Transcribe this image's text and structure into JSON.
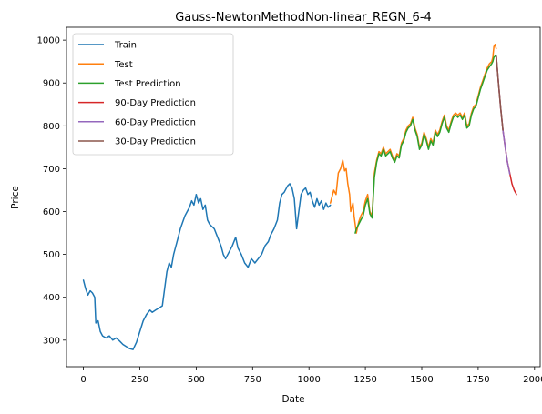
{
  "chart_data": {
    "type": "line",
    "title": "Gauss-NewtonMethodNon-linear_REGN_6-4",
    "xlabel": "Date",
    "ylabel": "Price",
    "xlim": [
      -75,
      2025
    ],
    "ylim": [
      238,
      1030
    ],
    "xticks": [
      0,
      250,
      500,
      750,
      1000,
      1250,
      1500,
      1750,
      2000
    ],
    "yticks": [
      300,
      400,
      500,
      600,
      700,
      800,
      900,
      1000
    ],
    "grid": false,
    "legend_position": "top-left",
    "series": [
      {
        "name": "Train",
        "color": "#1f77b4",
        "points": [
          [
            0,
            440
          ],
          [
            10,
            420
          ],
          [
            20,
            405
          ],
          [
            30,
            415
          ],
          [
            40,
            410
          ],
          [
            50,
            400
          ],
          [
            55,
            340
          ],
          [
            65,
            345
          ],
          [
            75,
            320
          ],
          [
            85,
            310
          ],
          [
            100,
            305
          ],
          [
            115,
            310
          ],
          [
            130,
            300
          ],
          [
            145,
            305
          ],
          [
            160,
            298
          ],
          [
            175,
            290
          ],
          [
            190,
            285
          ],
          [
            205,
            280
          ],
          [
            220,
            278
          ],
          [
            235,
            295
          ],
          [
            250,
            320
          ],
          [
            265,
            345
          ],
          [
            280,
            360
          ],
          [
            295,
            370
          ],
          [
            305,
            365
          ],
          [
            320,
            370
          ],
          [
            335,
            375
          ],
          [
            350,
            380
          ],
          [
            360,
            420
          ],
          [
            370,
            460
          ],
          [
            380,
            480
          ],
          [
            390,
            470
          ],
          [
            400,
            500
          ],
          [
            410,
            520
          ],
          [
            420,
            540
          ],
          [
            430,
            560
          ],
          [
            440,
            575
          ],
          [
            450,
            590
          ],
          [
            460,
            600
          ],
          [
            470,
            610
          ],
          [
            480,
            625
          ],
          [
            490,
            615
          ],
          [
            500,
            640
          ],
          [
            510,
            620
          ],
          [
            520,
            630
          ],
          [
            530,
            605
          ],
          [
            540,
            615
          ],
          [
            550,
            580
          ],
          [
            560,
            570
          ],
          [
            570,
            565
          ],
          [
            580,
            560
          ],
          [
            595,
            540
          ],
          [
            610,
            520
          ],
          [
            620,
            500
          ],
          [
            630,
            490
          ],
          [
            645,
            505
          ],
          [
            660,
            520
          ],
          [
            675,
            540
          ],
          [
            685,
            515
          ],
          [
            700,
            500
          ],
          [
            715,
            480
          ],
          [
            730,
            470
          ],
          [
            745,
            490
          ],
          [
            760,
            480
          ],
          [
            775,
            490
          ],
          [
            790,
            500
          ],
          [
            805,
            520
          ],
          [
            820,
            530
          ],
          [
            830,
            545
          ],
          [
            845,
            560
          ],
          [
            860,
            580
          ],
          [
            870,
            620
          ],
          [
            880,
            640
          ],
          [
            890,
            645
          ],
          [
            905,
            660
          ],
          [
            915,
            665
          ],
          [
            925,
            655
          ],
          [
            935,
            630
          ],
          [
            945,
            560
          ],
          [
            955,
            600
          ],
          [
            965,
            640
          ],
          [
            975,
            650
          ],
          [
            985,
            655
          ],
          [
            995,
            640
          ],
          [
            1005,
            645
          ],
          [
            1015,
            625
          ],
          [
            1025,
            610
          ],
          [
            1035,
            630
          ],
          [
            1045,
            615
          ],
          [
            1055,
            625
          ],
          [
            1065,
            605
          ],
          [
            1075,
            620
          ],
          [
            1085,
            610
          ],
          [
            1095,
            615
          ]
        ]
      },
      {
        "name": "Test",
        "color": "#ff7f0e",
        "points": [
          [
            1095,
            620
          ],
          [
            1110,
            650
          ],
          [
            1120,
            640
          ],
          [
            1130,
            690
          ],
          [
            1140,
            700
          ],
          [
            1150,
            720
          ],
          [
            1158,
            695
          ],
          [
            1165,
            700
          ],
          [
            1172,
            665
          ],
          [
            1180,
            640
          ],
          [
            1185,
            600
          ],
          [
            1195,
            620
          ],
          [
            1200,
            590
          ],
          [
            1210,
            550
          ],
          [
            1220,
            575
          ],
          [
            1230,
            590
          ],
          [
            1240,
            600
          ],
          [
            1250,
            625
          ],
          [
            1260,
            640
          ],
          [
            1270,
            600
          ],
          [
            1280,
            590
          ],
          [
            1290,
            690
          ],
          [
            1300,
            720
          ],
          [
            1310,
            740
          ],
          [
            1320,
            735
          ],
          [
            1330,
            750
          ],
          [
            1340,
            735
          ],
          [
            1350,
            740
          ],
          [
            1360,
            745
          ],
          [
            1370,
            730
          ],
          [
            1380,
            720
          ],
          [
            1390,
            735
          ],
          [
            1400,
            730
          ],
          [
            1410,
            760
          ],
          [
            1420,
            770
          ],
          [
            1430,
            790
          ],
          [
            1440,
            800
          ],
          [
            1450,
            805
          ],
          [
            1460,
            820
          ],
          [
            1470,
            795
          ],
          [
            1480,
            780
          ],
          [
            1490,
            750
          ],
          [
            1500,
            760
          ],
          [
            1510,
            785
          ],
          [
            1520,
            770
          ],
          [
            1530,
            750
          ],
          [
            1540,
            770
          ],
          [
            1550,
            760
          ],
          [
            1560,
            790
          ],
          [
            1570,
            780
          ],
          [
            1580,
            790
          ],
          [
            1590,
            810
          ],
          [
            1600,
            825
          ],
          [
            1610,
            800
          ],
          [
            1620,
            790
          ],
          [
            1630,
            810
          ],
          [
            1640,
            825
          ],
          [
            1650,
            830
          ],
          [
            1660,
            825
          ],
          [
            1670,
            830
          ],
          [
            1680,
            820
          ],
          [
            1690,
            830
          ],
          [
            1700,
            800
          ],
          [
            1710,
            805
          ],
          [
            1720,
            830
          ],
          [
            1730,
            845
          ],
          [
            1740,
            850
          ],
          [
            1750,
            870
          ],
          [
            1760,
            890
          ],
          [
            1770,
            905
          ],
          [
            1780,
            920
          ],
          [
            1790,
            935
          ],
          [
            1800,
            945
          ],
          [
            1810,
            950
          ],
          [
            1815,
            960
          ],
          [
            1820,
            985
          ],
          [
            1825,
            990
          ],
          [
            1830,
            980
          ]
        ]
      },
      {
        "name": "Test Prediction",
        "color": "#2ca02c",
        "points": [
          [
            1205,
            550
          ],
          [
            1210,
            560
          ],
          [
            1220,
            570
          ],
          [
            1230,
            580
          ],
          [
            1240,
            590
          ],
          [
            1250,
            615
          ],
          [
            1260,
            630
          ],
          [
            1270,
            595
          ],
          [
            1280,
            585
          ],
          [
            1290,
            680
          ],
          [
            1300,
            715
          ],
          [
            1310,
            735
          ],
          [
            1320,
            730
          ],
          [
            1330,
            745
          ],
          [
            1340,
            730
          ],
          [
            1350,
            735
          ],
          [
            1360,
            740
          ],
          [
            1370,
            725
          ],
          [
            1380,
            715
          ],
          [
            1390,
            730
          ],
          [
            1400,
            725
          ],
          [
            1410,
            755
          ],
          [
            1420,
            765
          ],
          [
            1430,
            785
          ],
          [
            1440,
            795
          ],
          [
            1450,
            800
          ],
          [
            1460,
            815
          ],
          [
            1470,
            790
          ],
          [
            1480,
            775
          ],
          [
            1490,
            745
          ],
          [
            1500,
            755
          ],
          [
            1510,
            780
          ],
          [
            1520,
            765
          ],
          [
            1530,
            745
          ],
          [
            1540,
            765
          ],
          [
            1550,
            755
          ],
          [
            1560,
            785
          ],
          [
            1570,
            775
          ],
          [
            1580,
            785
          ],
          [
            1590,
            805
          ],
          [
            1600,
            820
          ],
          [
            1610,
            795
          ],
          [
            1620,
            785
          ],
          [
            1630,
            805
          ],
          [
            1640,
            820
          ],
          [
            1650,
            825
          ],
          [
            1660,
            820
          ],
          [
            1670,
            825
          ],
          [
            1680,
            815
          ],
          [
            1690,
            825
          ],
          [
            1700,
            795
          ],
          [
            1710,
            800
          ],
          [
            1720,
            825
          ],
          [
            1730,
            840
          ],
          [
            1740,
            845
          ],
          [
            1750,
            865
          ],
          [
            1760,
            885
          ],
          [
            1770,
            900
          ],
          [
            1780,
            915
          ],
          [
            1790,
            930
          ],
          [
            1800,
            938
          ],
          [
            1810,
            945
          ],
          [
            1815,
            950
          ],
          [
            1820,
            960
          ],
          [
            1825,
            965
          ],
          [
            1830,
            960
          ]
        ]
      },
      {
        "name": "90-Day Prediction",
        "color": "#d62728",
        "points": [
          [
            1830,
            965
          ],
          [
            1840,
            900
          ],
          [
            1850,
            840
          ],
          [
            1860,
            790
          ],
          [
            1870,
            750
          ],
          [
            1880,
            715
          ],
          [
            1890,
            690
          ],
          [
            1900,
            665
          ],
          [
            1910,
            650
          ],
          [
            1920,
            640
          ]
        ]
      },
      {
        "name": "60-Day Prediction",
        "color": "#9467bd",
        "points": [
          [
            1830,
            965
          ],
          [
            1840,
            900
          ],
          [
            1850,
            840
          ],
          [
            1860,
            790
          ],
          [
            1870,
            750
          ],
          [
            1880,
            715
          ],
          [
            1890,
            688
          ]
        ]
      },
      {
        "name": "30-Day Prediction",
        "color": "#8c564b",
        "points": [
          [
            1830,
            965
          ],
          [
            1840,
            900
          ],
          [
            1850,
            840
          ],
          [
            1860,
            790
          ]
        ]
      }
    ]
  }
}
